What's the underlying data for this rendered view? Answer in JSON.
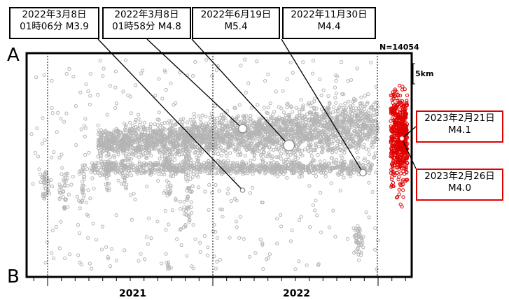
{
  "chart_data": {
    "type": "scatter",
    "title": "",
    "xlabel": "",
    "ylabel": "",
    "count_label": "N=14054",
    "scale_label": "5km",
    "section_labels": {
      "top": "A",
      "bottom": "B"
    },
    "x_ticks": [
      "2021",
      "2022"
    ],
    "colors": {
      "background_events": "#b4b4b4",
      "recent_events": "#e00000",
      "highlight_fill": "#ffffff"
    },
    "highlighted_events": [
      {
        "date": "2022-03-08",
        "label_line1": "2022年3月8日",
        "label_line2": "01時06分 M3.9",
        "magnitude": 3.9,
        "box": "black"
      },
      {
        "date": "2022-03-08",
        "label_line1": "2022年3月8日",
        "label_line2": "01時58分 M4.8",
        "magnitude": 4.8,
        "box": "black"
      },
      {
        "date": "2022-06-19",
        "label_line1": "2022年6月19日",
        "label_line2": "M5.4",
        "magnitude": 5.4,
        "box": "black"
      },
      {
        "date": "2022-11-30",
        "label_line1": "2022年11月30日",
        "label_line2": "M4.4",
        "magnitude": 4.4,
        "box": "black"
      },
      {
        "date": "2023-02-21",
        "label_line1": "2023年2月21日",
        "label_line2": "M4.1",
        "magnitude": 4.1,
        "box": "red"
      },
      {
        "date": "2023-02-26",
        "label_line1": "2023年2月26日",
        "label_line2": "M4.0",
        "magnitude": 4.0,
        "box": "red"
      }
    ]
  }
}
